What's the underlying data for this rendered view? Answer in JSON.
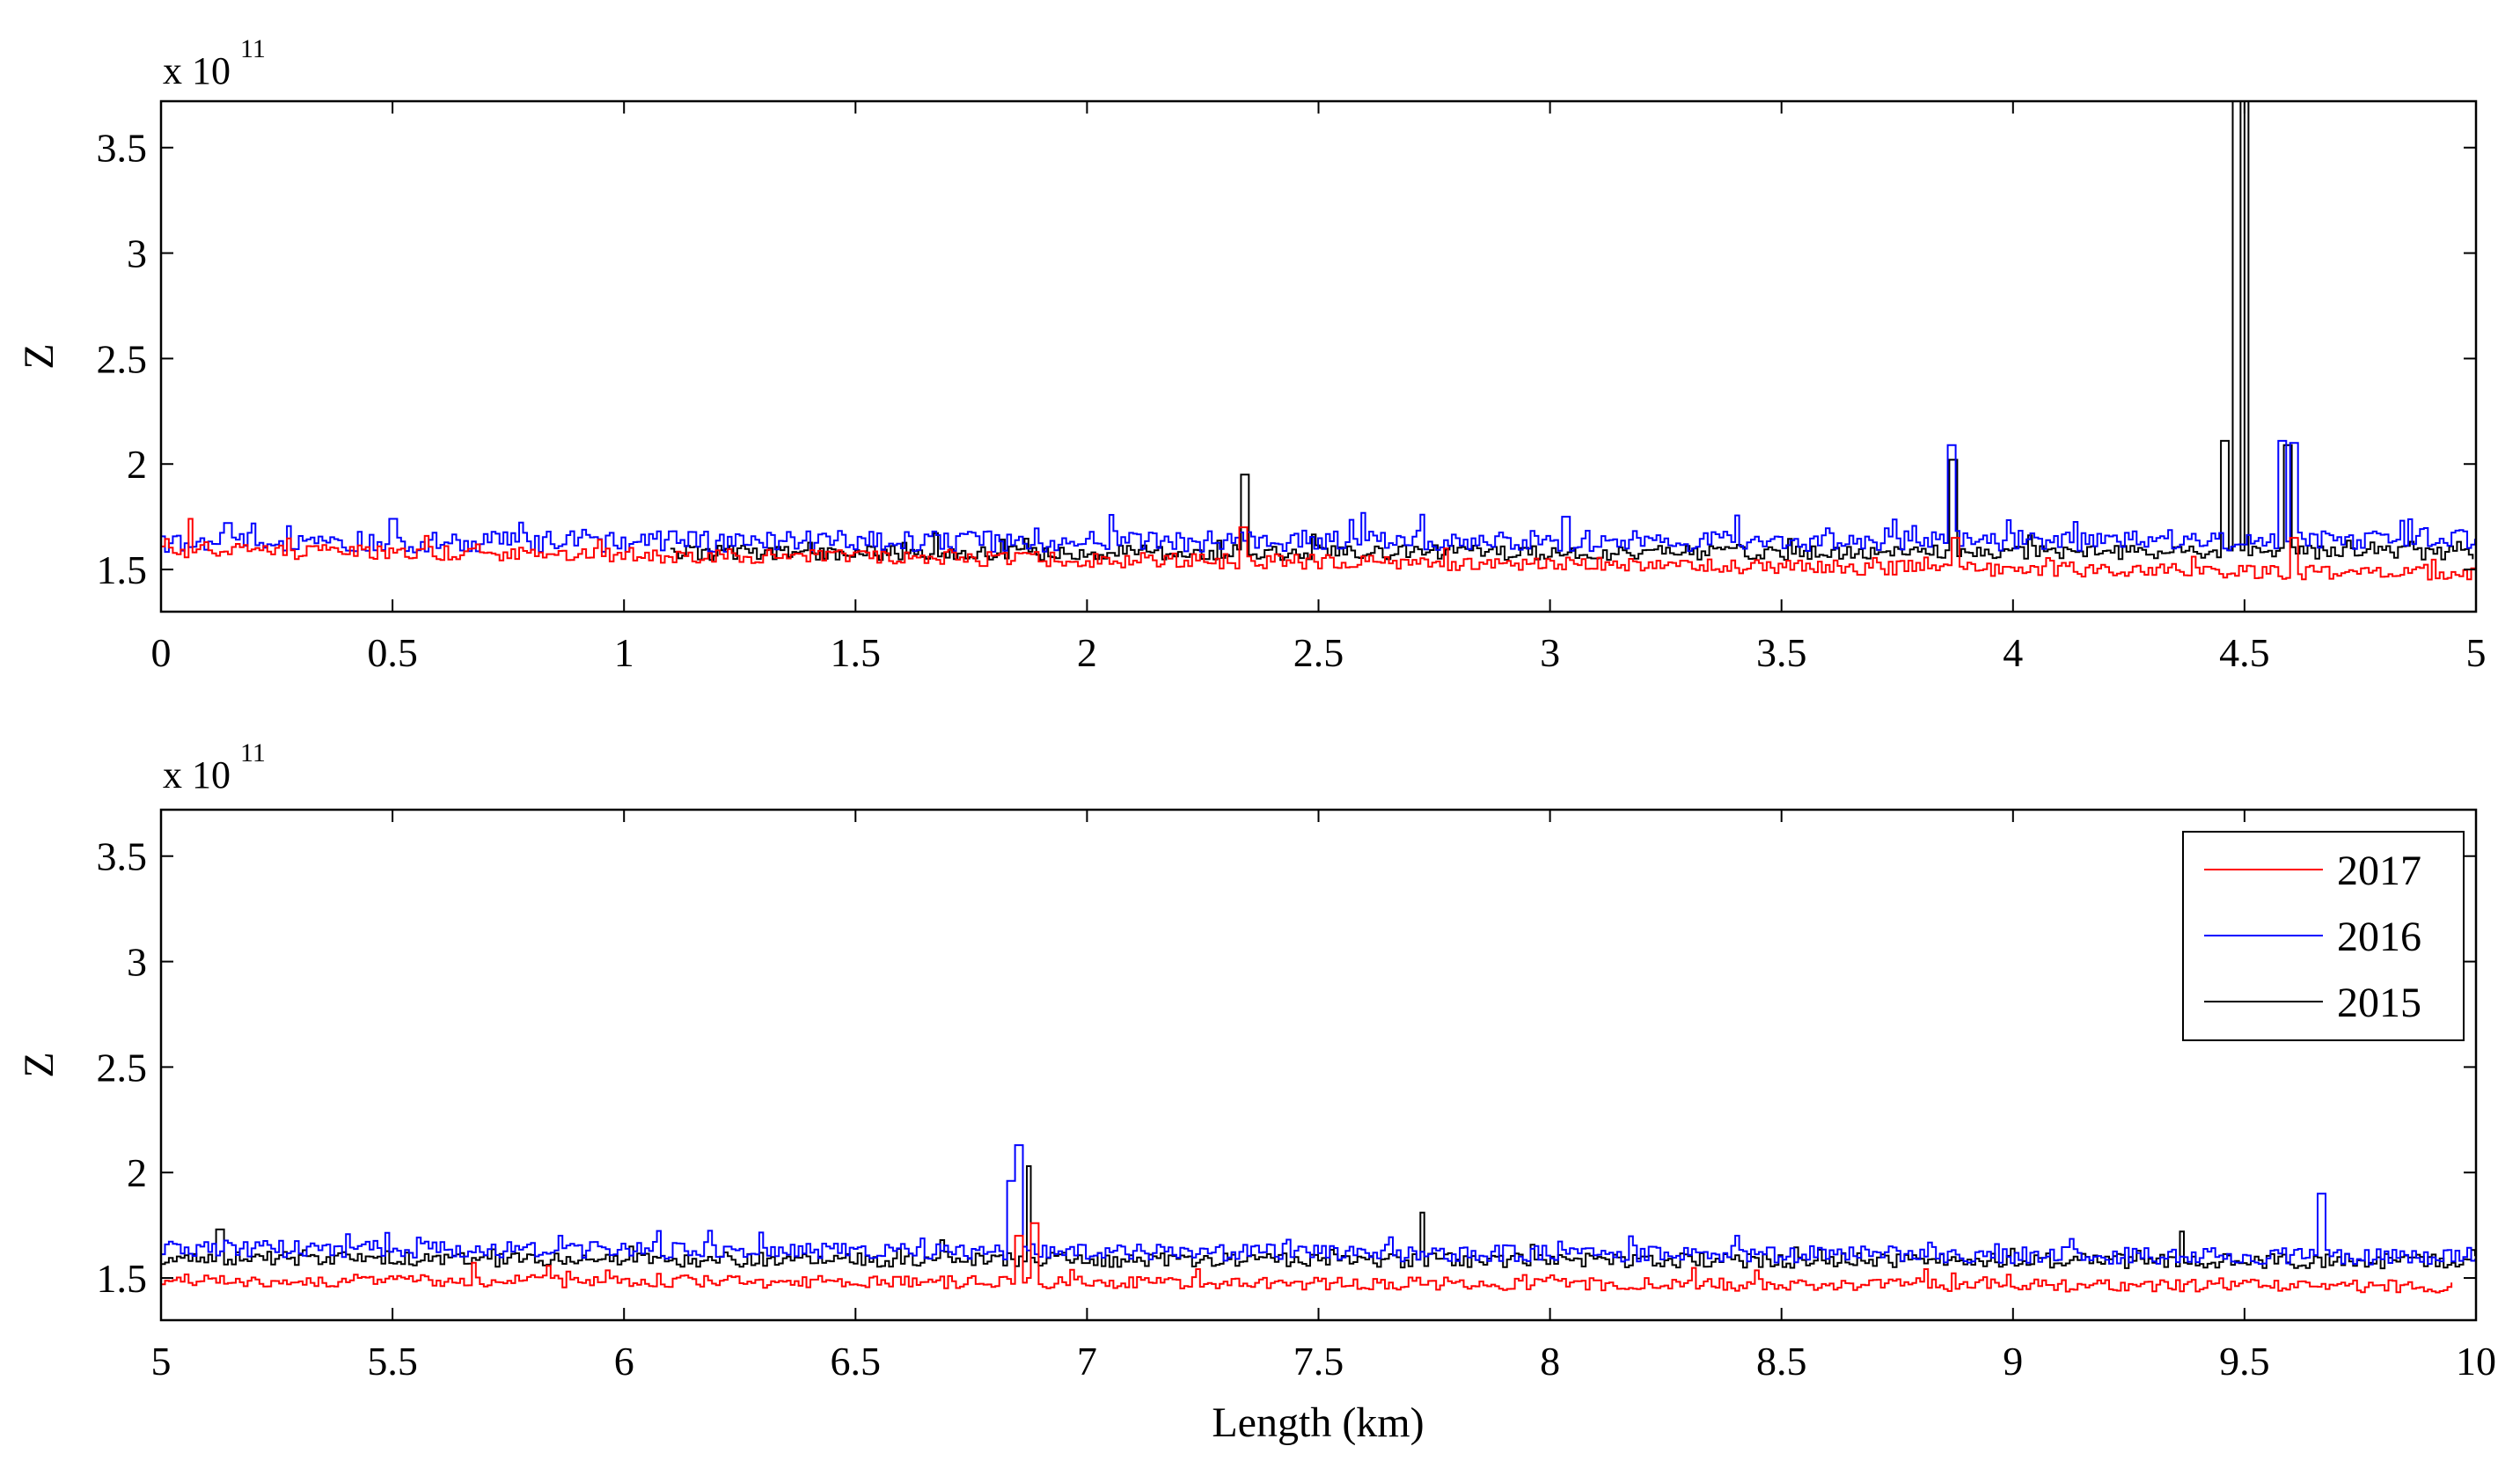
{
  "chart_data": [
    {
      "type": "line",
      "panel": "top",
      "title": "",
      "xlabel": "",
      "ylabel": "Z",
      "y_multiplier": "x 10",
      "y_exponent": "11",
      "xlim": [
        0,
        5
      ],
      "ylim": [
        1.3,
        3.72
      ],
      "xticks": [
        0,
        0.5,
        1,
        1.5,
        2,
        2.5,
        3,
        3.5,
        4,
        4.5,
        5
      ],
      "xtick_labels": [
        "0",
        "0.5",
        "1",
        "1.5",
        "2",
        "2.5",
        "3",
        "3.5",
        "4",
        "4.5",
        "5"
      ],
      "yticks": [
        1.5,
        2,
        2.5,
        3,
        3.5
      ],
      "ytick_labels": [
        "1.5",
        "2",
        "2.5",
        "3",
        "3.5"
      ],
      "grid": false,
      "legend": null,
      "series": [
        {
          "name": "2017",
          "color": "#ff0000",
          "base_start": 1.59,
          "base_end": 1.48,
          "noise": 0.035,
          "x_start": 0,
          "x_end": 5,
          "spikes": [
            {
              "x": 0.06,
              "y": 1.74
            },
            {
              "x": 2.33,
              "y": 1.7
            },
            {
              "x": 3.87,
              "y": 1.65
            },
            {
              "x": 4.6,
              "y": 1.65
            }
          ]
        },
        {
          "name": "2016",
          "color": "#0000ff",
          "base_start": 1.63,
          "base_end": 1.64,
          "noise": 0.05,
          "x_start": 0,
          "x_end": 5,
          "spikes": [
            {
              "x": 0.14,
              "y": 1.72
            },
            {
              "x": 0.5,
              "y": 1.74
            },
            {
              "x": 2.72,
              "y": 1.76
            },
            {
              "x": 3.03,
              "y": 1.75
            },
            {
              "x": 3.86,
              "y": 2.09
            },
            {
              "x": 4.58,
              "y": 2.11
            },
            {
              "x": 4.6,
              "y": 2.1
            }
          ]
        },
        {
          "name": "2015",
          "color": "#000000",
          "base_start": 1.58,
          "base_end": 1.58,
          "noise": 0.035,
          "x_start": 1.1,
          "x_end": 5,
          "spikes": [
            {
              "x": 2.34,
              "y": 1.95
            },
            {
              "x": 3.87,
              "y": 2.02
            },
            {
              "x": 4.45,
              "y": 2.11
            },
            {
              "x": 4.48,
              "y": 3.72
            },
            {
              "x": 4.5,
              "y": 3.72
            },
            {
              "x": 4.59,
              "y": 2.09
            }
          ]
        }
      ]
    },
    {
      "type": "line",
      "panel": "bottom",
      "title": "",
      "xlabel": "Length (km)",
      "ylabel": "Z",
      "y_multiplier": "x 10",
      "y_exponent": "11",
      "xlim": [
        5,
        10
      ],
      "ylim": [
        1.3,
        3.72
      ],
      "xticks": [
        5,
        5.5,
        6,
        6.5,
        7,
        7.5,
        8,
        8.5,
        9,
        9.5,
        10
      ],
      "xtick_labels": [
        "5",
        "5.5",
        "6",
        "6.5",
        "7",
        "7.5",
        "8",
        "8.5",
        "9",
        "9.5",
        "10"
      ],
      "yticks": [
        1.5,
        2,
        2.5,
        3,
        3.5
      ],
      "ytick_labels": [
        "1.5",
        "2",
        "2.5",
        "3",
        "3.5"
      ],
      "grid": false,
      "legend": "top-right",
      "series": [
        {
          "name": "2017",
          "color": "#ff0000",
          "base_start": 1.49,
          "base_end": 1.46,
          "noise": 0.03,
          "x_start": 5,
          "x_end": 9.95,
          "spikes": [
            {
              "x": 6.85,
              "y": 1.7
            },
            {
              "x": 6.88,
              "y": 1.76
            }
          ]
        },
        {
          "name": "2016",
          "color": "#0000ff",
          "base_start": 1.64,
          "base_end": 1.6,
          "noise": 0.04,
          "x_start": 5,
          "x_end": 10,
          "spikes": [
            {
              "x": 6.83,
              "y": 1.96
            },
            {
              "x": 6.85,
              "y": 2.13
            },
            {
              "x": 9.66,
              "y": 1.9
            }
          ]
        },
        {
          "name": "2015",
          "color": "#000000",
          "base_start": 1.59,
          "base_end": 1.58,
          "noise": 0.035,
          "x_start": 5,
          "x_end": 10,
          "spikes": [
            {
              "x": 5.12,
              "y": 1.73
            },
            {
              "x": 6.87,
              "y": 2.03
            },
            {
              "x": 7.72,
              "y": 1.81
            },
            {
              "x": 9.36,
              "y": 1.72
            }
          ]
        }
      ]
    }
  ],
  "legend_entries": [
    {
      "label": "2017",
      "color": "#ff0000"
    },
    {
      "label": "2016",
      "color": "#0000ff"
    },
    {
      "label": "2015",
      "color": "#000000"
    }
  ]
}
